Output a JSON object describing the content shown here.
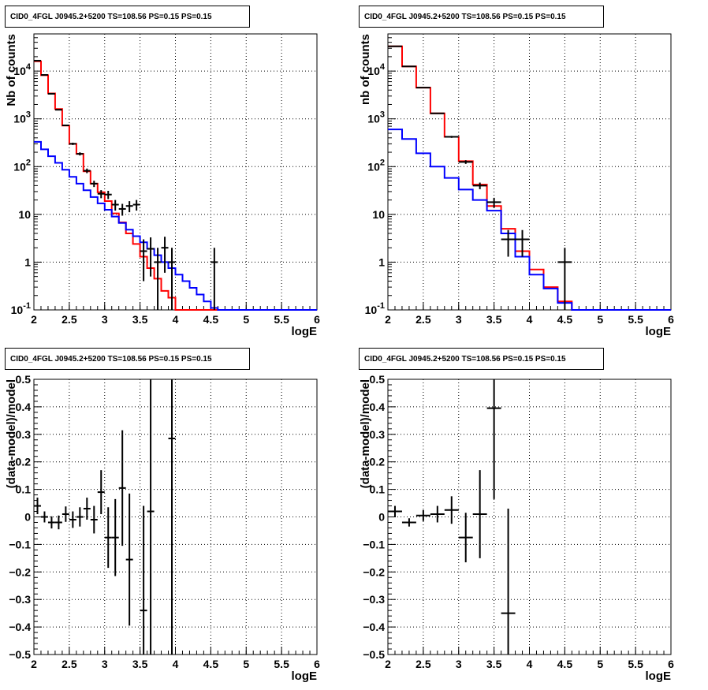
{
  "colors": {
    "total_model": "#ff0000",
    "component_model": "#0000ff",
    "data": "#000000",
    "grid": "#000000"
  },
  "panels": [
    {
      "title": "CID0_4FGL J0945.2+5200 TS=108.56 PS=0.15 PS=0.15",
      "ylabel": "Nb of counts",
      "xlabel": "logE",
      "x_ticks": [
        "2",
        "2.5",
        "3",
        "3.5",
        "4",
        "4.5",
        "5",
        "5.5",
        "6"
      ],
      "y_ticks": [
        "10^-1",
        "1",
        "10",
        "10^2",
        "10^3",
        "10^4"
      ]
    },
    {
      "title": "CID0_4FGL J0945.2+5200 TS=108.56 PS=0.15 PS=0.15",
      "ylabel": "nb of counts",
      "xlabel": "logE",
      "x_ticks": [
        "2",
        "2.5",
        "3",
        "3.5",
        "4",
        "4.5",
        "5",
        "5.5",
        "6"
      ],
      "y_ticks": [
        "10^-1",
        "1",
        "10",
        "10^2",
        "10^3",
        "10^4"
      ]
    },
    {
      "title": "CID0_4FGL J0945.2+5200 TS=108.56 PS=0.15 PS=0.15",
      "ylabel": "(data-model)/model",
      "xlabel": "logE",
      "x_ticks": [
        "2",
        "2.5",
        "3",
        "3.5",
        "4",
        "4.5",
        "5",
        "5.5",
        "6"
      ],
      "y_ticks": [
        "−0.5",
        "−0.4",
        "−0.3",
        "−0.2",
        "−0.1",
        "0",
        "0.1",
        "0.2",
        "0.3",
        "0.4",
        "0.5"
      ]
    },
    {
      "title": "CID0_4FGL J0945.2+5200 TS=108.56 PS=0.15 PS=0.15",
      "ylabel": "(data-model)/model",
      "xlabel": "logE",
      "x_ticks": [
        "2",
        "2.5",
        "3",
        "3.5",
        "4",
        "4.5",
        "5",
        "5.5",
        "6"
      ],
      "y_ticks": [
        "−0.5",
        "−0.4",
        "−0.3",
        "−0.2",
        "−0.1",
        "0",
        "0.1",
        "0.2",
        "0.3",
        "0.4",
        "0.5"
      ]
    }
  ],
  "chart_data": [
    {
      "type": "line",
      "subtype": "step-histogram",
      "title": "CID0_4FGL J0945.2+5200 TS=108.56 PS=0.15 PS=0.15",
      "xlabel": "logE",
      "ylabel": "Nb of counts",
      "xlim": [
        2,
        6
      ],
      "ylim": [
        0.1,
        60000
      ],
      "yscale": "log",
      "grid": true,
      "bin_edges": [
        2.0,
        2.1,
        2.2,
        2.3,
        2.4,
        2.5,
        2.6,
        2.7,
        2.8,
        2.9,
        3.0,
        3.1,
        3.2,
        3.3,
        3.4,
        3.5,
        3.6,
        3.7,
        3.8,
        3.9,
        4.0,
        4.1,
        4.2,
        4.3,
        4.4,
        4.5,
        4.6,
        4.7,
        4.8,
        4.9,
        5.0,
        5.1,
        5.2,
        5.3,
        5.4,
        5.5,
        5.6,
        5.7,
        5.8,
        5.9,
        6.0
      ],
      "series": [
        {
          "values": [
            16000,
            8200,
            3400,
            1600,
            720,
            300,
            185,
            80,
            44,
            29,
            19,
            10.5,
            6.8,
            4.0,
            2.4,
            1.3,
            0.75,
            0.45,
            0.25,
            0.18,
            0.1,
            0.1,
            0.1,
            0.1,
            0.1,
            0.1,
            0.1,
            0.1,
            0.1,
            0.1,
            0.1,
            0.1,
            0.1,
            0.1,
            0.1,
            0.1,
            0.1,
            0.1,
            0.1,
            0.1
          ],
          "color": "#ff0000"
        },
        {
          "values": [
            330,
            230,
            165,
            120,
            86,
            61,
            44,
            32,
            23,
            17,
            12.5,
            9.0,
            6.6,
            4.8,
            3.5,
            2.6,
            1.9,
            1.4,
            1.0,
            0.75,
            0.55,
            0.4,
            0.29,
            0.21,
            0.15,
            0.11,
            0.1,
            0.1,
            0.1,
            0.1,
            0.1,
            0.1,
            0.1,
            0.1,
            0.1,
            0.1,
            0.1,
            0.1,
            0.1,
            0.1
          ],
          "color": "#0000ff"
        }
      ],
      "points": [
        {
          "x": 2.05,
          "y": 16500,
          "err": 130
        },
        {
          "x": 2.15,
          "y": 8300,
          "err": 90
        },
        {
          "x": 2.25,
          "y": 3350,
          "err": 58
        },
        {
          "x": 2.35,
          "y": 1550,
          "err": 40
        },
        {
          "x": 2.45,
          "y": 730,
          "err": 27
        },
        {
          "x": 2.55,
          "y": 300,
          "err": 17
        },
        {
          "x": 2.65,
          "y": 185,
          "err": 14
        },
        {
          "x": 2.75,
          "y": 82,
          "err": 9
        },
        {
          "x": 2.85,
          "y": 44,
          "err": 6.6
        },
        {
          "x": 2.95,
          "y": 27,
          "err": 5.2
        },
        {
          "x": 3.05,
          "y": 26,
          "err": 5.1
        },
        {
          "x": 3.15,
          "y": 16,
          "err": 4
        },
        {
          "x": 3.25,
          "y": 13,
          "err": 3.6
        },
        {
          "x": 3.35,
          "y": 15,
          "err": 3.9
        },
        {
          "x": 3.45,
          "y": 16,
          "err": 4
        },
        {
          "x": 3.55,
          "y": 1.7,
          "err": 1.3
        },
        {
          "x": 3.65,
          "y": 1.9,
          "err": 1.4
        },
        {
          "x": 3.75,
          "y": 1.0,
          "err": 1
        },
        {
          "x": 3.85,
          "y": 2.0,
          "err": 1.4
        },
        {
          "x": 3.95,
          "y": 1.0,
          "err": 1
        },
        {
          "x": 4.55,
          "y": 1.0,
          "err": 1
        }
      ]
    },
    {
      "type": "line",
      "subtype": "step-histogram",
      "title": "CID0_4FGL J0945.2+5200 TS=108.56 PS=0.15 PS=0.15",
      "xlabel": "logE",
      "ylabel": "nb of counts",
      "xlim": [
        2,
        6
      ],
      "ylim": [
        0.1,
        60000
      ],
      "yscale": "log",
      "grid": true,
      "bin_edges": [
        2.0,
        2.2,
        2.4,
        2.6,
        2.8,
        3.0,
        3.2,
        3.4,
        3.6,
        3.8,
        4.0,
        4.2,
        4.4,
        4.6,
        4.8,
        5.0,
        5.2,
        5.4,
        5.6,
        5.8,
        6.0
      ],
      "series": [
        {
          "values": [
            33000,
            12500,
            4500,
            1300,
            420,
            130,
            42,
            15,
            5.0,
            1.7,
            0.7,
            0.3,
            0.15,
            0.1,
            0.1,
            0.1,
            0.1,
            0.1,
            0.1,
            0.1
          ],
          "color": "#ff0000"
        },
        {
          "values": [
            600,
            380,
            190,
            100,
            58,
            33,
            20,
            12,
            4.0,
            1.3,
            0.55,
            0.28,
            0.14,
            0.1,
            0.1,
            0.1,
            0.1,
            0.1,
            0.1,
            0.1
          ],
          "color": "#0000ff"
        }
      ],
      "points": [
        {
          "x": 2.1,
          "y": 33000,
          "err": 182
        },
        {
          "x": 2.3,
          "y": 12500,
          "err": 112
        },
        {
          "x": 2.5,
          "y": 4500,
          "err": 67
        },
        {
          "x": 2.7,
          "y": 1300,
          "err": 36
        },
        {
          "x": 2.9,
          "y": 420,
          "err": 20
        },
        {
          "x": 3.1,
          "y": 125,
          "err": 11
        },
        {
          "x": 3.3,
          "y": 40,
          "err": 6.3
        },
        {
          "x": 3.5,
          "y": 18,
          "err": 4.2
        },
        {
          "x": 3.7,
          "y": 3.0,
          "err": 1.7
        },
        {
          "x": 3.9,
          "y": 3.0,
          "err": 1.7
        },
        {
          "x": 4.5,
          "y": 1.0,
          "err": 1
        }
      ]
    },
    {
      "type": "scatter",
      "subtype": "residuals-with-errorbars",
      "title": "CID0_4FGL J0945.2+5200 TS=108.56 PS=0.15 PS=0.15",
      "xlabel": "logE",
      "ylabel": "(data-model)/model",
      "xlim": [
        2,
        6
      ],
      "ylim": [
        -0.5,
        0.5
      ],
      "grid": true,
      "points": [
        {
          "x": 2.05,
          "y": 0.04,
          "err": 0.03
        },
        {
          "x": 2.15,
          "y": 0.0,
          "err": 0.02
        },
        {
          "x": 2.25,
          "y": -0.02,
          "err": 0.022
        },
        {
          "x": 2.35,
          "y": -0.02,
          "err": 0.025
        },
        {
          "x": 2.45,
          "y": 0.01,
          "err": 0.028
        },
        {
          "x": 2.55,
          "y": -0.01,
          "err": 0.03
        },
        {
          "x": 2.65,
          "y": 0.0,
          "err": 0.035
        },
        {
          "x": 2.75,
          "y": 0.03,
          "err": 0.04
        },
        {
          "x": 2.85,
          "y": -0.01,
          "err": 0.05
        },
        {
          "x": 2.95,
          "y": 0.09,
          "err": 0.08
        },
        {
          "x": 3.05,
          "y": -0.075,
          "err": 0.11
        },
        {
          "x": 3.15,
          "y": -0.075,
          "err": 0.14
        },
        {
          "x": 3.25,
          "y": 0.105,
          "err": 0.21
        },
        {
          "x": 3.35,
          "y": -0.155,
          "err": 0.24
        },
        {
          "x": 3.55,
          "y": -0.34,
          "err": 0.38
        },
        {
          "x": 3.65,
          "y": 0.02,
          "err": 0.6
        },
        {
          "x": 3.95,
          "y": 0.285,
          "err": 1.0
        }
      ]
    },
    {
      "type": "scatter",
      "subtype": "residuals-with-errorbars",
      "title": "CID0_4FGL J0945.2+5200 TS=108.56 PS=0.15 PS=0.15",
      "xlabel": "logE",
      "ylabel": "(data-model)/model",
      "xlim": [
        2,
        6
      ],
      "ylim": [
        -0.5,
        0.5
      ],
      "grid": true,
      "points": [
        {
          "x": 2.1,
          "y": 0.02,
          "err": 0.02
        },
        {
          "x": 2.3,
          "y": -0.02,
          "err": 0.015
        },
        {
          "x": 2.5,
          "y": 0.005,
          "err": 0.02
        },
        {
          "x": 2.7,
          "y": 0.01,
          "err": 0.03
        },
        {
          "x": 2.9,
          "y": 0.025,
          "err": 0.05
        },
        {
          "x": 3.1,
          "y": -0.075,
          "err": 0.09
        },
        {
          "x": 3.3,
          "y": 0.01,
          "err": 0.16
        },
        {
          "x": 3.5,
          "y": 0.395,
          "err": 0.33
        },
        {
          "x": 3.7,
          "y": -0.35,
          "err": 0.38
        }
      ]
    }
  ]
}
